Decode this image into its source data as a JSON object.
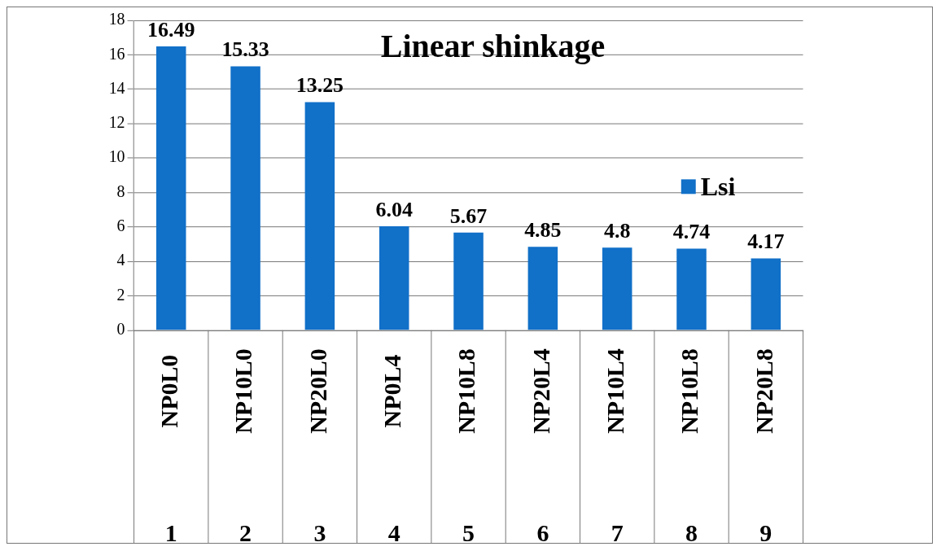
{
  "chart_data": {
    "type": "bar",
    "title": "Linear shinkage",
    "categories": [
      "NP0L0",
      "NP10L0",
      "NP20L0",
      "NP0L4",
      "NP10L8",
      "NP20L4",
      "NP10L4",
      "NP10L8",
      "NP20L8"
    ],
    "series": [
      {
        "name": "Lsi",
        "color": "#1170c8",
        "values": [
          16.49,
          15.33,
          13.25,
          6.04,
          5.67,
          4.85,
          4.8,
          4.74,
          4.17
        ]
      }
    ],
    "ylim": [
      0,
      18
    ],
    "yticks": [
      0,
      2,
      4,
      6,
      8,
      10,
      12,
      14,
      16,
      18
    ],
    "grid": "y",
    "legend": "right",
    "data_labels": true,
    "annotations": [
      "1",
      "2",
      "3",
      "4",
      "5",
      "6",
      "7",
      "8",
      "9"
    ]
  }
}
